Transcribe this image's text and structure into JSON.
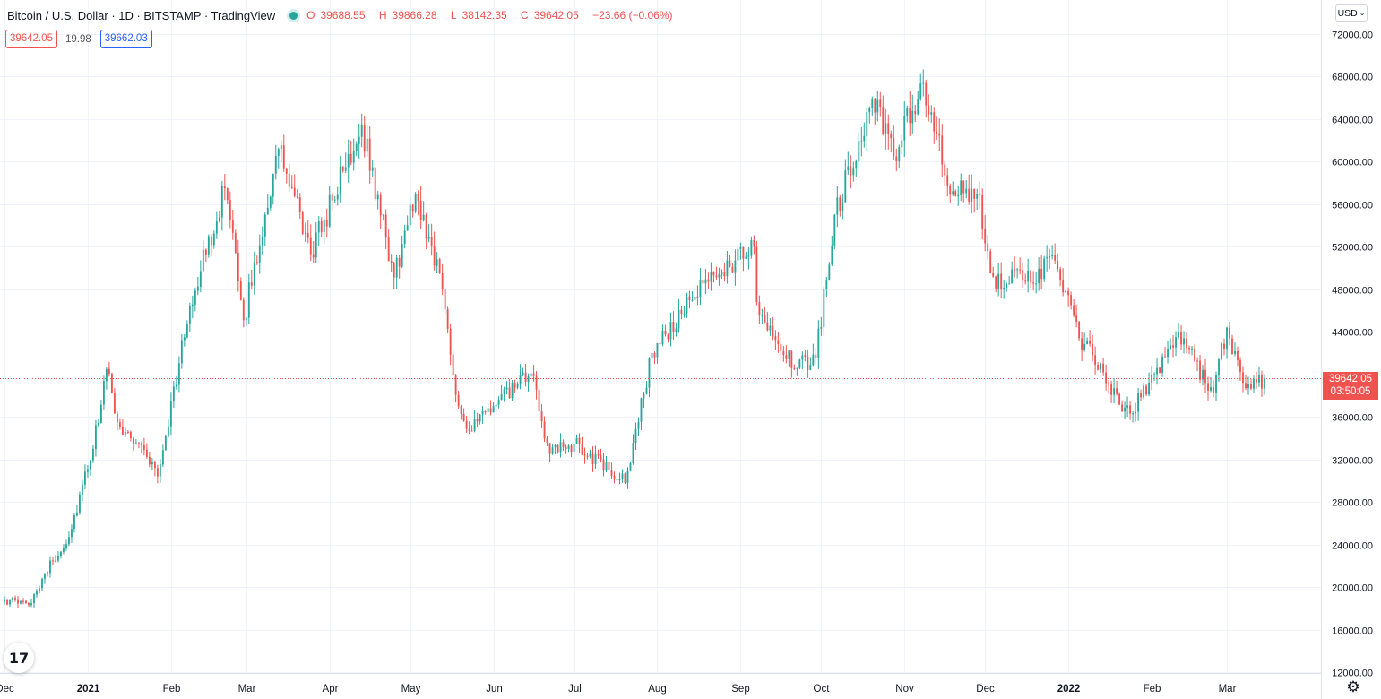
{
  "header": {
    "title": "Bitcoin / U.S. Dollar · 1D · BITSTAMP · TradingView",
    "ohlc": {
      "o_label": "O",
      "o": "39688.55",
      "h_label": "H",
      "h": "39866.28",
      "l_label": "L",
      "l": "38142.35",
      "c_label": "C",
      "c": "39642.05",
      "change": "−23.66 (−0.06%)"
    }
  },
  "quote": {
    "sell": "39642.05",
    "spread": "19.98",
    "buy": "39662.03"
  },
  "currency_button": "USD",
  "last_price": {
    "price": "39642.05",
    "countdown": "03:50:05"
  },
  "logo_text": "17",
  "colors": {
    "up": "#26a69a",
    "down": "#ef5350",
    "grid": "#f0f3fa",
    "axis_text": "#131722"
  },
  "chart_data": {
    "type": "candlestick",
    "title": "",
    "xlabel": "",
    "ylabel": "",
    "grid": true,
    "ylim": [
      11000,
      74000
    ],
    "y_ticks": [
      "12000.00",
      "16000.00",
      "20000.00",
      "24000.00",
      "28000.00",
      "32000.00",
      "36000.00",
      "40000.00",
      "44000.00",
      "48000.00",
      "52000.00",
      "56000.00",
      "60000.00",
      "64000.00",
      "68000.00",
      "72000.00"
    ],
    "x_tick_labels": [
      "Dec",
      "2021",
      "Feb",
      "Mar",
      "Apr",
      "May",
      "Jun",
      "Jul",
      "Aug",
      "Sep",
      "Oct",
      "Nov",
      "Dec",
      "2022",
      "Feb",
      "Mar"
    ],
    "x_tick_dates": [
      "2020-12-01",
      "2021-01-01",
      "2021-02-01",
      "2021-03-01",
      "2021-04-01",
      "2021-05-01",
      "2021-06-01",
      "2021-07-01",
      "2021-08-01",
      "2021-09-01",
      "2021-10-01",
      "2021-11-01",
      "2021-12-01",
      "2022-01-01",
      "2022-02-01",
      "2022-03-01"
    ],
    "date_range": [
      "2020-12-01",
      "2022-03-15"
    ],
    "last_close": 39642.05,
    "key_closes": [
      {
        "date": "2020-12-01",
        "close": 18800
      },
      {
        "date": "2020-12-10",
        "close": 18300
      },
      {
        "date": "2020-12-16",
        "close": 21300
      },
      {
        "date": "2020-12-25",
        "close": 24700
      },
      {
        "date": "2021-01-03",
        "close": 33000
      },
      {
        "date": "2021-01-08",
        "close": 40500
      },
      {
        "date": "2021-01-12",
        "close": 35500
      },
      {
        "date": "2021-01-22",
        "close": 32900
      },
      {
        "date": "2021-01-27",
        "close": 30400
      },
      {
        "date": "2021-02-08",
        "close": 46400
      },
      {
        "date": "2021-02-21",
        "close": 57500
      },
      {
        "date": "2021-02-28",
        "close": 45100
      },
      {
        "date": "2021-03-13",
        "close": 61200
      },
      {
        "date": "2021-03-25",
        "close": 51300
      },
      {
        "date": "2021-04-13",
        "close": 63500
      },
      {
        "date": "2021-04-25",
        "close": 49100
      },
      {
        "date": "2021-05-03",
        "close": 57000
      },
      {
        "date": "2021-05-12",
        "close": 49500
      },
      {
        "date": "2021-05-19",
        "close": 37000
      },
      {
        "date": "2021-05-23",
        "close": 34700
      },
      {
        "date": "2021-06-01",
        "close": 37000
      },
      {
        "date": "2021-06-15",
        "close": 40100
      },
      {
        "date": "2021-06-22",
        "close": 32500
      },
      {
        "date": "2021-07-01",
        "close": 33500
      },
      {
        "date": "2021-07-20",
        "close": 29800
      },
      {
        "date": "2021-07-30",
        "close": 42000
      },
      {
        "date": "2021-08-14",
        "close": 47000
      },
      {
        "date": "2021-08-22",
        "close": 49300
      },
      {
        "date": "2021-09-06",
        "close": 52000
      },
      {
        "date": "2021-09-07",
        "close": 46800
      },
      {
        "date": "2021-09-21",
        "close": 40500
      },
      {
        "date": "2021-09-29",
        "close": 41500
      },
      {
        "date": "2021-10-06",
        "close": 55000
      },
      {
        "date": "2021-10-20",
        "close": 65900
      },
      {
        "date": "2021-10-28",
        "close": 60500
      },
      {
        "date": "2021-11-08",
        "close": 67400
      },
      {
        "date": "2021-11-18",
        "close": 56900
      },
      {
        "date": "2021-11-28",
        "close": 57000
      },
      {
        "date": "2021-12-04",
        "close": 49200
      },
      {
        "date": "2021-12-15",
        "close": 48800
      },
      {
        "date": "2021-12-27",
        "close": 50700
      },
      {
        "date": "2022-01-05",
        "close": 43400
      },
      {
        "date": "2022-01-10",
        "close": 41800
      },
      {
        "date": "2022-01-21",
        "close": 36500
      },
      {
        "date": "2022-01-24",
        "close": 36300
      },
      {
        "date": "2022-02-10",
        "close": 43500
      },
      {
        "date": "2022-02-14",
        "close": 42500
      },
      {
        "date": "2022-02-24",
        "close": 38300
      },
      {
        "date": "2022-03-01",
        "close": 44400
      },
      {
        "date": "2022-03-08",
        "close": 38700
      },
      {
        "date": "2022-03-15",
        "close": 39642
      }
    ]
  }
}
